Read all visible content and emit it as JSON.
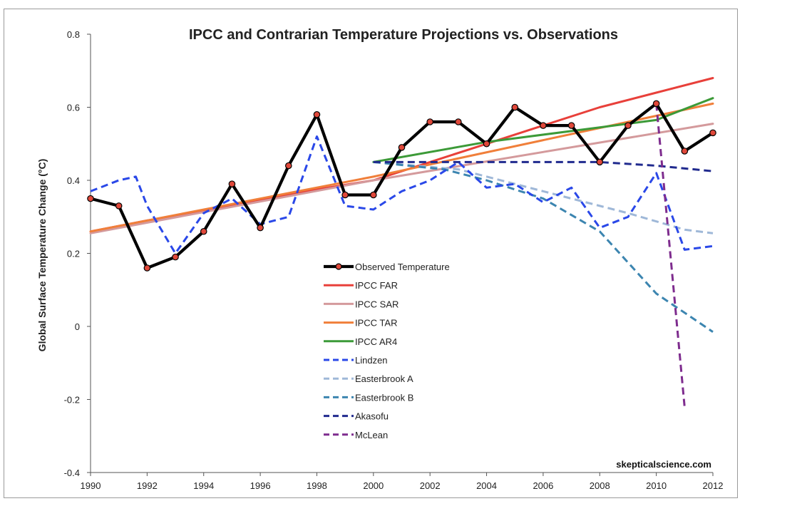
{
  "chart_data": {
    "type": "line",
    "title": "IPCC and Contrarian Temperature Projections vs. Observations",
    "ylabel": "Global Surface Temperature Change (°C)",
    "xlabel": "",
    "xlim": [
      1990,
      2012
    ],
    "ylim": [
      -0.4,
      0.8
    ],
    "x_ticks": [
      "1990",
      "1992",
      "1994",
      "1996",
      "1998",
      "2000",
      "2002",
      "2004",
      "2006",
      "2008",
      "2010",
      "2012"
    ],
    "y_ticks": [
      "0.8",
      "0.6",
      "0.4",
      "0.2",
      "0",
      "-0.2",
      "-0.4"
    ],
    "grid": false,
    "legend_position": "center-bottom",
    "credit": "skepticalscience.com",
    "series": [
      {
        "name": "Observed Temperature",
        "color": "#000000",
        "style": "solid",
        "markers": true,
        "x": [
          1990,
          1991,
          1992,
          1993,
          1994,
          1995,
          1996,
          1997,
          1998,
          1999,
          2000,
          2001,
          2002,
          2003,
          2004,
          2005,
          2006,
          2007,
          2008,
          2009,
          2010,
          2011,
          2012
        ],
        "y": [
          0.35,
          0.33,
          0.16,
          0.19,
          0.26,
          0.39,
          0.27,
          0.44,
          0.58,
          0.36,
          0.36,
          0.49,
          0.56,
          0.56,
          0.5,
          0.6,
          0.55,
          0.55,
          0.45,
          0.55,
          0.61,
          0.48,
          0.53
        ]
      },
      {
        "name": "IPCC FAR",
        "color": "#e8403a",
        "style": "solid",
        "x": [
          1990,
          1992,
          1994,
          1996,
          1998,
          2000,
          2002,
          2004,
          2006,
          2008,
          2010,
          2012
        ],
        "y": [
          0.26,
          0.29,
          0.315,
          0.345,
          0.375,
          0.4,
          0.45,
          0.5,
          0.55,
          0.6,
          0.64,
          0.68
        ]
      },
      {
        "name": "IPCC SAR",
        "color": "#d49a9c",
        "style": "solid",
        "x": [
          1990,
          2000,
          2012
        ],
        "y": [
          0.255,
          0.4,
          0.555
        ]
      },
      {
        "name": "IPCC TAR",
        "color": "#f07f3a",
        "style": "solid",
        "x": [
          1990,
          2000,
          2012
        ],
        "y": [
          0.26,
          0.41,
          0.61
        ]
      },
      {
        "name": "IPCC AR4",
        "color": "#3c9a38",
        "style": "solid",
        "x": [
          2000,
          2004,
          2008,
          2010,
          2012
        ],
        "y": [
          0.45,
          0.505,
          0.545,
          0.565,
          0.625
        ]
      },
      {
        "name": "Lindzen",
        "color": "#2a48e8",
        "style": "dashed",
        "x": [
          1990,
          1991,
          1991.6,
          1992,
          1993,
          1994,
          1995,
          1996,
          1997,
          1998,
          1999,
          2000,
          2001,
          2002,
          2003,
          2004,
          2005,
          2006,
          2007,
          2008,
          2009,
          2010,
          2011,
          2012
        ],
        "y": [
          0.37,
          0.4,
          0.41,
          0.33,
          0.2,
          0.31,
          0.35,
          0.28,
          0.3,
          0.52,
          0.33,
          0.32,
          0.37,
          0.4,
          0.45,
          0.38,
          0.39,
          0.34,
          0.38,
          0.27,
          0.3,
          0.42,
          0.21,
          0.22
        ]
      },
      {
        "name": "Easterbrook A",
        "color": "#9fb8d8",
        "style": "dashed",
        "x": [
          2000,
          2003,
          2005,
          2007,
          2009,
          2011,
          2012
        ],
        "y": [
          0.45,
          0.43,
          0.39,
          0.35,
          0.31,
          0.265,
          0.255
        ]
      },
      {
        "name": "Easterbrook B",
        "color": "#3c85b0",
        "style": "dashed",
        "x": [
          2000,
          2002.5,
          2004,
          2006,
          2008,
          2010,
          2012
        ],
        "y": [
          0.45,
          0.43,
          0.4,
          0.35,
          0.26,
          0.09,
          -0.015
        ]
      },
      {
        "name": "Akasofu",
        "color": "#202a8e",
        "style": "dashed",
        "x": [
          2000,
          2004,
          2008,
          2010,
          2012
        ],
        "y": [
          0.45,
          0.45,
          0.45,
          0.44,
          0.425
        ]
      },
      {
        "name": "McLean",
        "color": "#7e2c8e",
        "style": "dashed",
        "x": [
          2010,
          2011
        ],
        "y": [
          0.61,
          -0.22
        ]
      }
    ]
  }
}
